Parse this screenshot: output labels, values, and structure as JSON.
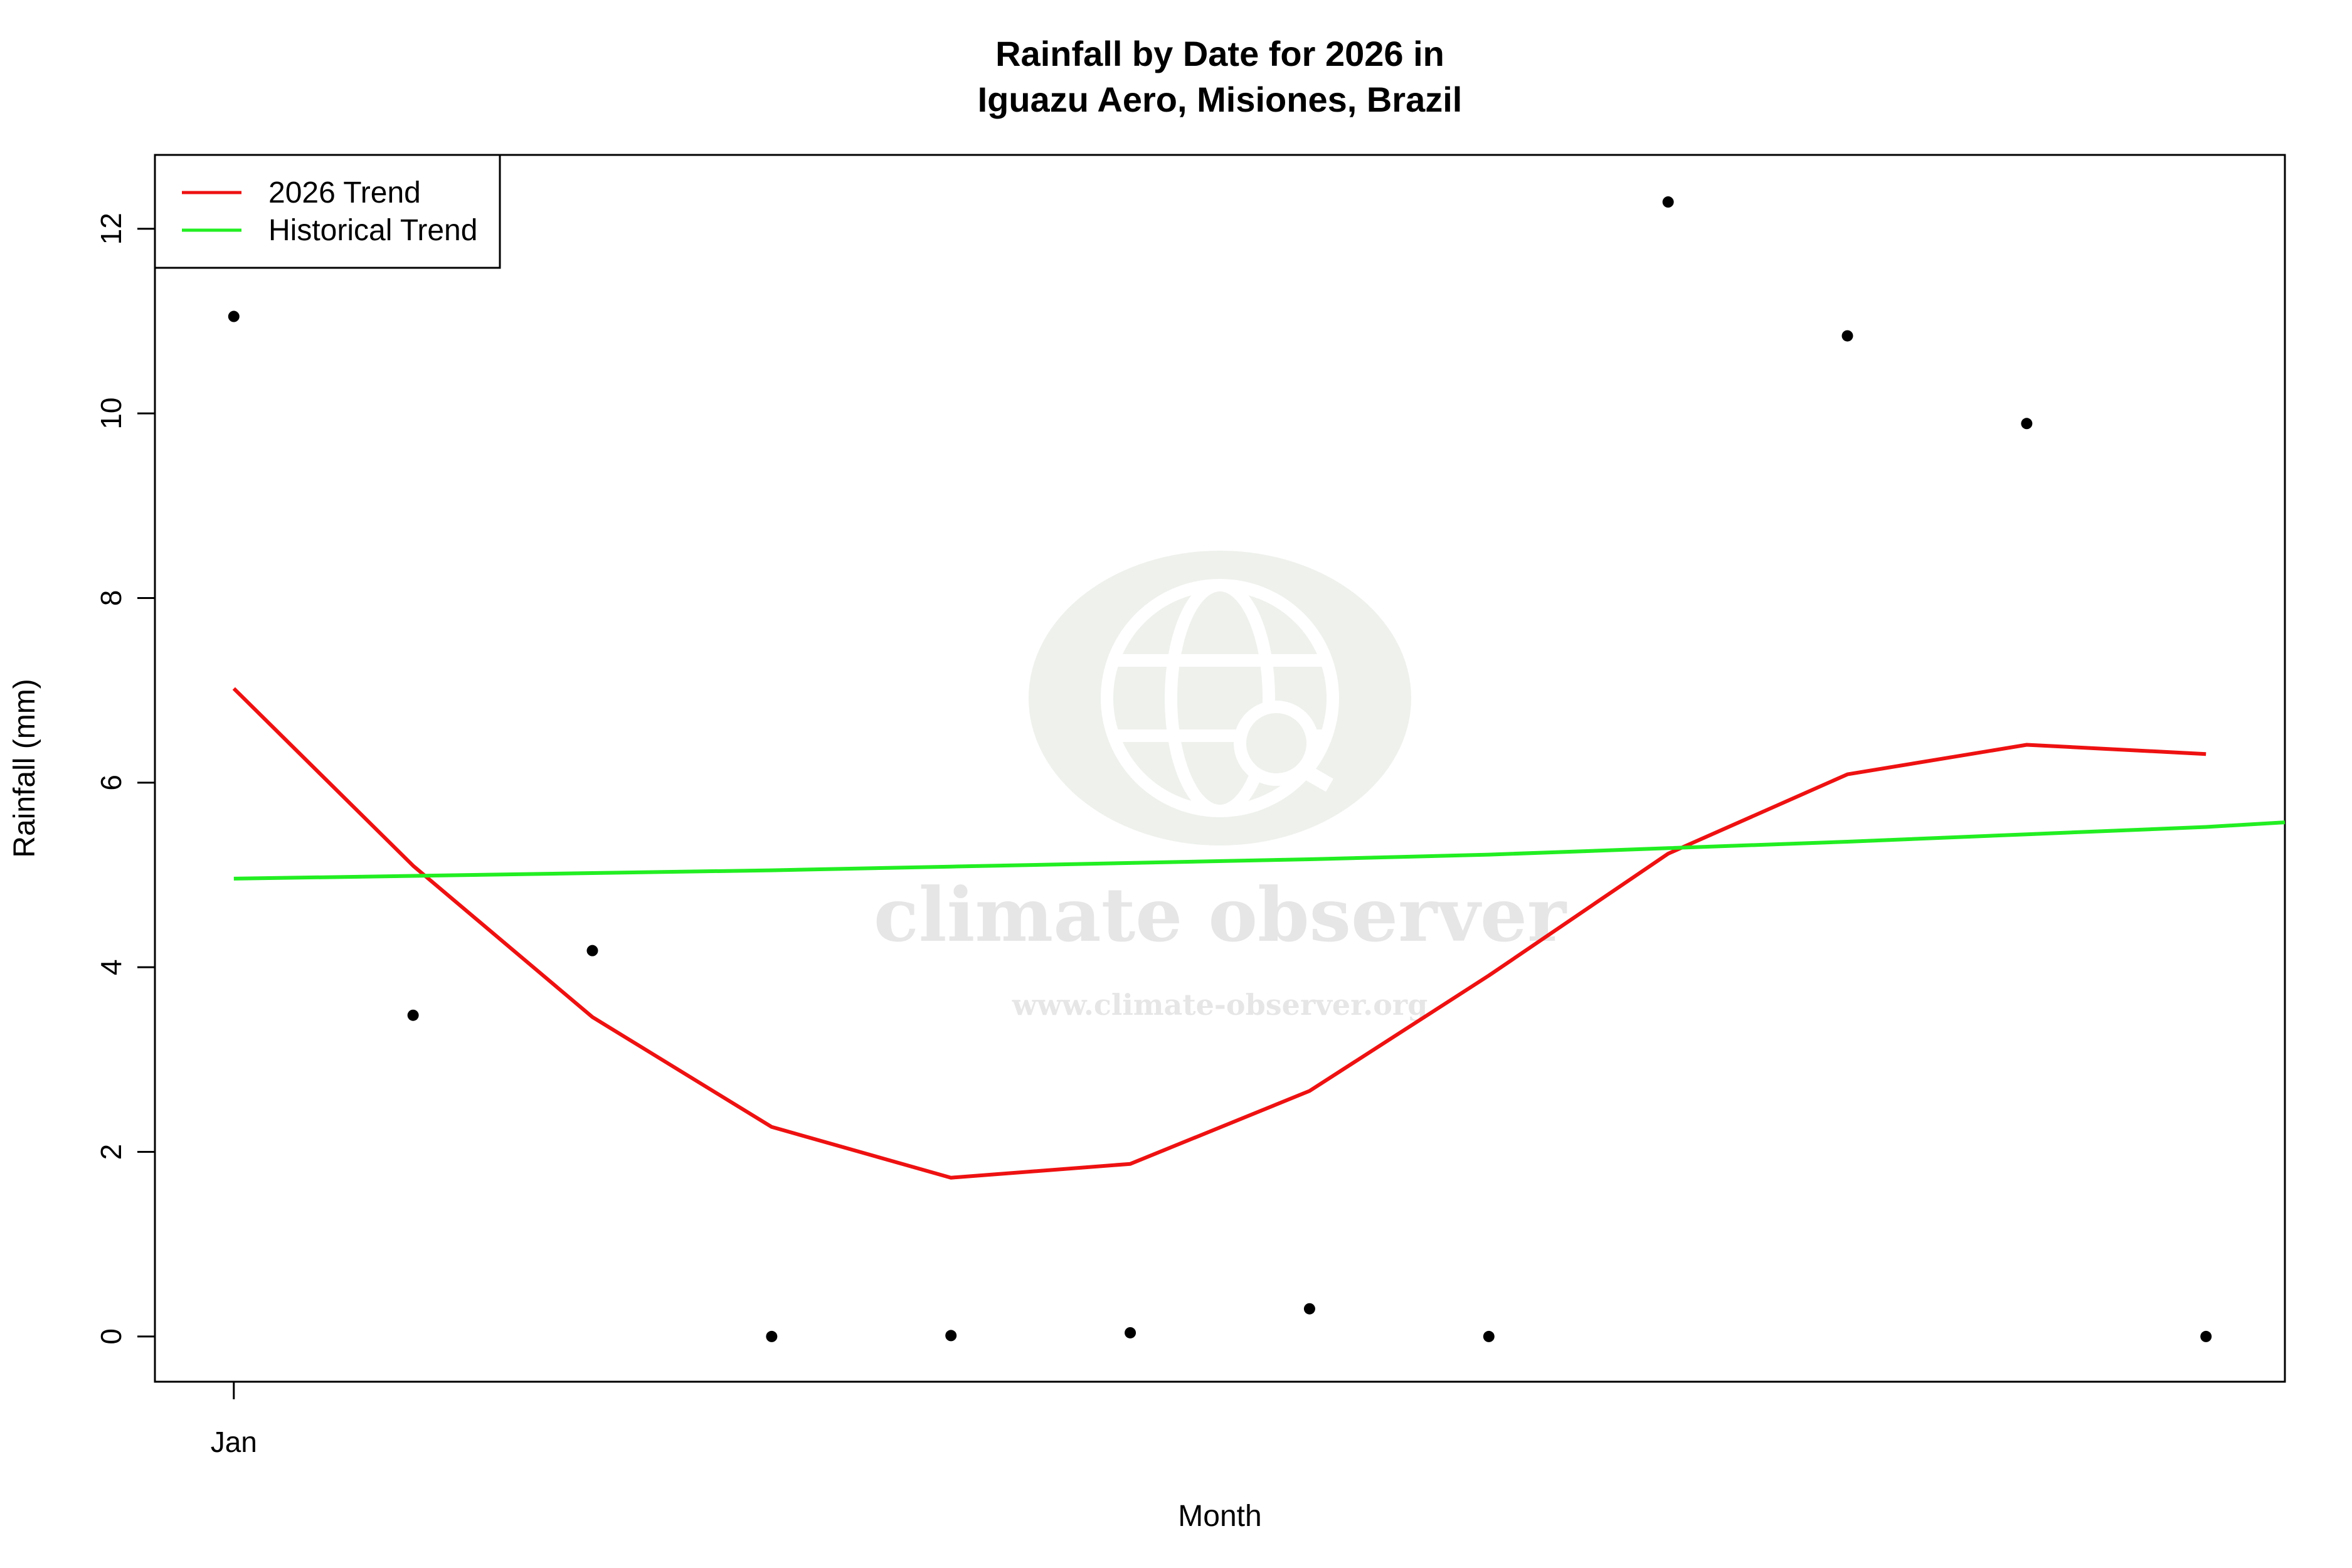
{
  "chart_data": {
    "type": "scatter",
    "title": "Rainfall by Date for 2026 in",
    "subtitle": "Iguazu Aero, Misiones, Brazil",
    "xlabel": "Month",
    "ylabel": "Rainfall (mm)",
    "x_ticks": [
      {
        "x": 1,
        "label": "Jan"
      }
    ],
    "y_ticks": [
      0,
      2,
      4,
      6,
      8,
      10,
      12
    ],
    "xlim": [
      0.56,
      12.44
    ],
    "ylim": [
      -0.49,
      12.8
    ],
    "grid": false,
    "legend_position": "top-left",
    "points": [
      {
        "x": 1,
        "y": 11.05
      },
      {
        "x": 2,
        "y": 3.48
      },
      {
        "x": 3,
        "y": 4.18
      },
      {
        "x": 4,
        "y": 0.0
      },
      {
        "x": 5,
        "y": 0.01
      },
      {
        "x": 6,
        "y": 0.04
      },
      {
        "x": 7,
        "y": 0.3
      },
      {
        "x": 8,
        "y": 0.0
      },
      {
        "x": 9,
        "y": 12.29
      },
      {
        "x": 10,
        "y": 10.84
      },
      {
        "x": 11,
        "y": 9.89
      },
      {
        "x": 12,
        "y": 0.0
      }
    ],
    "series": [
      {
        "name": "2026 Trend",
        "color": "#ee1111",
        "x": [
          1,
          2,
          3,
          4,
          5,
          6,
          7,
          8,
          9,
          10,
          11,
          12
        ],
        "values": [
          7.02,
          5.1,
          3.46,
          2.27,
          1.72,
          1.87,
          2.66,
          3.91,
          5.23,
          6.09,
          6.41,
          6.31
        ]
      },
      {
        "name": "Historical Trend",
        "color": "#22ee22",
        "x": [
          1,
          2,
          3,
          4,
          5,
          6,
          7,
          8,
          9,
          10,
          11,
          12,
          12.44
        ],
        "values": [
          4.96,
          4.99,
          5.02,
          5.05,
          5.09,
          5.13,
          5.17,
          5.22,
          5.29,
          5.36,
          5.44,
          5.52,
          5.57
        ]
      }
    ]
  },
  "watermark": {
    "brand": "climate observer",
    "url": "www.climate-observer.org",
    "icon": "globe-search-icon"
  }
}
